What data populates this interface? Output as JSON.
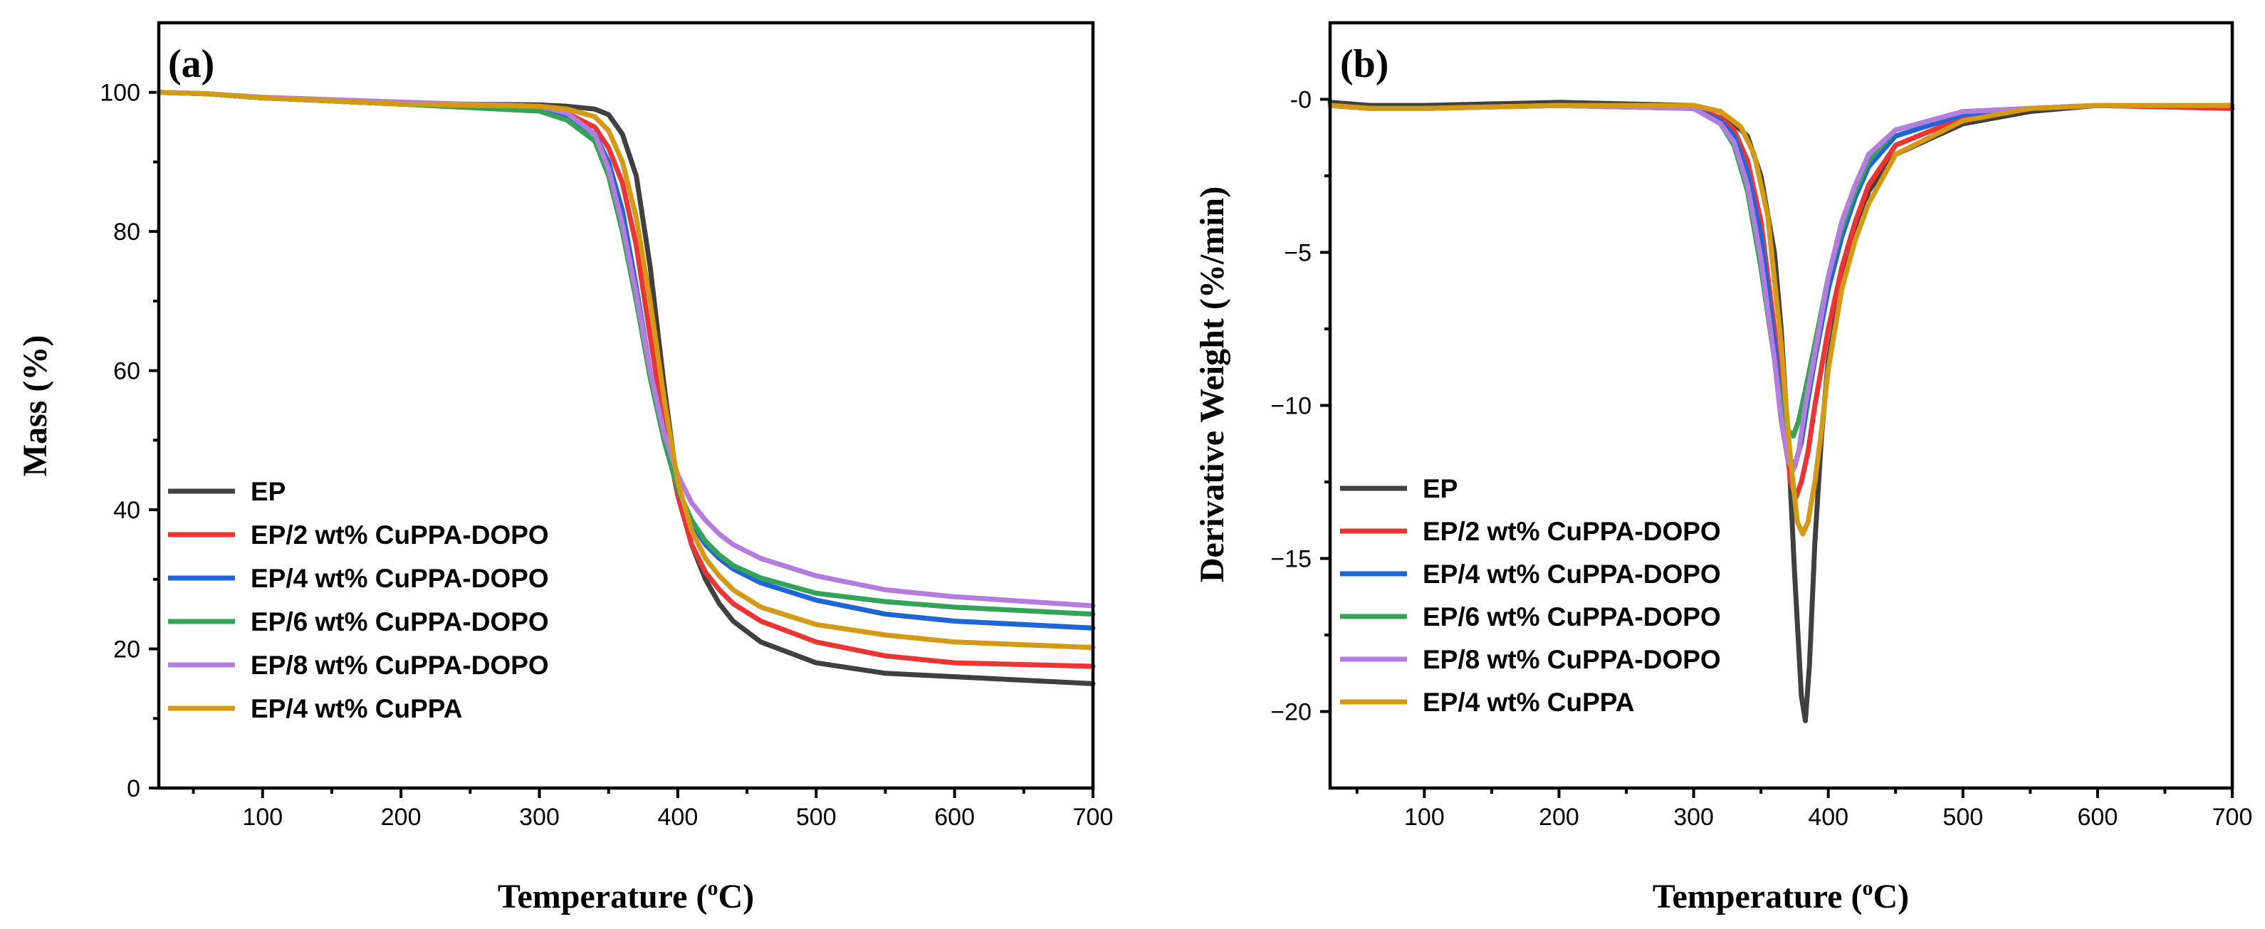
{
  "colors": {
    "EP": "#404040",
    "EP2": "#ee3333",
    "EP4": "#1e66d8",
    "EP6": "#33a35a",
    "EP8": "#b57ce0",
    "CuPPA": "#d49a14"
  },
  "chart_data": [
    {
      "panel": "(a)",
      "type": "line",
      "xlabel": "Temperature (oC)",
      "ylabel": "Mass (%)",
      "xlim": [
        25,
        700
      ],
      "ylim": [
        0,
        110
      ],
      "xticks": [
        100,
        200,
        300,
        400,
        500,
        600,
        700
      ],
      "yticks": [
        0,
        20,
        40,
        60,
        80,
        100
      ],
      "legend_position": "lower-left",
      "series": [
        {
          "name": "EP",
          "color_key": "EP",
          "x": [
            25,
            60,
            100,
            200,
            300,
            320,
            340,
            350,
            360,
            370,
            380,
            390,
            400,
            410,
            420,
            430,
            440,
            460,
            500,
            550,
            600,
            700
          ],
          "y": [
            100,
            99.8,
            99.2,
            98.4,
            98.2,
            98,
            97.6,
            96.8,
            94,
            88,
            75,
            58,
            43,
            35,
            30,
            26.5,
            24,
            21,
            18,
            16.5,
            16,
            15
          ]
        },
        {
          "name": "EP/2 wt% CuPPA-DOPO",
          "color_key": "EP2",
          "x": [
            25,
            60,
            100,
            200,
            300,
            320,
            340,
            350,
            360,
            370,
            380,
            390,
            400,
            410,
            420,
            430,
            440,
            460,
            500,
            550,
            600,
            700
          ],
          "y": [
            100,
            99.8,
            99.2,
            98.3,
            97.8,
            97,
            95,
            92,
            87,
            78,
            65,
            52,
            42,
            35,
            31,
            28.5,
            26.5,
            24,
            21,
            19,
            18,
            17.5
          ]
        },
        {
          "name": "EP/4 wt% CuPPA-DOPO",
          "color_key": "EP4",
          "x": [
            25,
            60,
            100,
            200,
            300,
            320,
            340,
            350,
            360,
            370,
            380,
            390,
            400,
            410,
            420,
            430,
            440,
            460,
            500,
            550,
            600,
            700
          ],
          "y": [
            100,
            99.8,
            99.2,
            98.3,
            97.5,
            96.5,
            94,
            90,
            83,
            72,
            60,
            50,
            43,
            38,
            35,
            33,
            31.5,
            29.5,
            27,
            25,
            24,
            23
          ]
        },
        {
          "name": "EP/6 wt% CuPPA-DOPO",
          "color_key": "EP6",
          "x": [
            25,
            60,
            100,
            200,
            300,
            320,
            340,
            350,
            360,
            370,
            380,
            390,
            400,
            410,
            420,
            430,
            440,
            460,
            500,
            550,
            600,
            700
          ],
          "y": [
            100,
            99.8,
            99.2,
            98.3,
            97.3,
            96,
            93,
            88,
            80,
            70,
            59,
            50,
            43,
            38.5,
            35.5,
            33.5,
            32,
            30.2,
            28,
            26.8,
            26,
            25
          ]
        },
        {
          "name": "EP/8 wt% CuPPA-DOPO",
          "color_key": "EP8",
          "x": [
            25,
            60,
            100,
            200,
            300,
            320,
            340,
            350,
            360,
            370,
            380,
            390,
            400,
            410,
            420,
            430,
            440,
            460,
            500,
            550,
            600,
            700
          ],
          "y": [
            100,
            99.8,
            99.3,
            98.6,
            98,
            97,
            94,
            89,
            81,
            71,
            60,
            51,
            45,
            41,
            38.5,
            36.5,
            35,
            33,
            30.5,
            28.5,
            27.5,
            26.2
          ]
        },
        {
          "name": "EP/4 wt% CuPPA",
          "color_key": "CuPPA",
          "x": [
            25,
            60,
            100,
            200,
            300,
            320,
            340,
            350,
            360,
            370,
            380,
            390,
            400,
            410,
            420,
            430,
            440,
            460,
            500,
            550,
            600,
            700
          ],
          "y": [
            100,
            99.8,
            99.2,
            98.3,
            98,
            97.6,
            96.5,
            94.5,
            90,
            82,
            70,
            56,
            44,
            37,
            33,
            30.5,
            28.5,
            26,
            23.5,
            22,
            21,
            20.2
          ]
        }
      ]
    },
    {
      "panel": "(b)",
      "type": "line",
      "xlabel": "Temperature (oC)",
      "ylabel": "Derivative Weight (%/min)",
      "xlim": [
        30,
        700
      ],
      "ylim": [
        -22.5,
        2.5
      ],
      "xticks": [
        100,
        200,
        300,
        400,
        500,
        600,
        700
      ],
      "yticks": [
        -20,
        -15,
        -10,
        -5,
        0
      ],
      "ytick_labels": [
        "−20",
        "−15",
        "−10",
        "−5",
        "-0"
      ],
      "legend_position": "lower-left",
      "series": [
        {
          "name": "EP",
          "color_key": "EP",
          "x": [
            30,
            60,
            100,
            200,
            300,
            320,
            340,
            350,
            360,
            365,
            370,
            375,
            380,
            383,
            386,
            390,
            395,
            400,
            410,
            420,
            430,
            450,
            500,
            550,
            600,
            700
          ],
          "y": [
            -0.1,
            -0.2,
            -0.2,
            -0.1,
            -0.2,
            -0.4,
            -1.2,
            -2.5,
            -5,
            -7.5,
            -11,
            -15.5,
            -19.5,
            -20.3,
            -18.5,
            -14.5,
            -11,
            -8.5,
            -6,
            -4.5,
            -3,
            -1.8,
            -0.8,
            -0.4,
            -0.2,
            -0.2
          ]
        },
        {
          "name": "EP/2 wt% CuPPA-DOPO",
          "color_key": "EP2",
          "x": [
            30,
            60,
            100,
            200,
            300,
            320,
            330,
            340,
            350,
            360,
            367,
            372,
            376,
            380,
            385,
            390,
            400,
            410,
            420,
            430,
            450,
            500,
            550,
            600,
            700
          ],
          "y": [
            -0.2,
            -0.3,
            -0.3,
            -0.2,
            -0.3,
            -0.6,
            -1,
            -2,
            -4,
            -7.5,
            -10.5,
            -12.5,
            -13,
            -12.5,
            -11.5,
            -10,
            -7.5,
            -5.5,
            -4,
            -2.8,
            -1.5,
            -0.6,
            -0.3,
            -0.2,
            -0.3
          ]
        },
        {
          "name": "EP/4 wt% CuPPA-DOPO",
          "color_key": "EP4",
          "x": [
            30,
            60,
            100,
            200,
            300,
            320,
            330,
            340,
            350,
            360,
            366,
            371,
            375,
            380,
            385,
            390,
            400,
            410,
            420,
            430,
            450,
            500,
            550,
            600,
            700
          ],
          "y": [
            -0.2,
            -0.3,
            -0.3,
            -0.2,
            -0.3,
            -0.7,
            -1.2,
            -2.4,
            -4.5,
            -8,
            -10.5,
            -11.7,
            -12,
            -11.2,
            -9.8,
            -8.5,
            -6.2,
            -4.5,
            -3.2,
            -2.2,
            -1.2,
            -0.5,
            -0.3,
            -0.2,
            -0.2
          ]
        },
        {
          "name": "EP/6 wt% CuPPA-DOPO",
          "color_key": "EP6",
          "x": [
            30,
            60,
            100,
            200,
            300,
            320,
            330,
            340,
            350,
            360,
            365,
            370,
            374,
            378,
            383,
            390,
            400,
            410,
            420,
            430,
            450,
            500,
            550,
            600,
            700
          ],
          "y": [
            -0.2,
            -0.3,
            -0.3,
            -0.2,
            -0.3,
            -0.8,
            -1.5,
            -3,
            -5.5,
            -8.5,
            -10,
            -10.8,
            -11,
            -10.5,
            -9.5,
            -8,
            -5.8,
            -4.2,
            -3,
            -2,
            -1,
            -0.4,
            -0.3,
            -0.2,
            -0.2
          ]
        },
        {
          "name": "EP/8 wt% CuPPA-DOPO",
          "color_key": "EP8",
          "x": [
            30,
            60,
            100,
            200,
            300,
            320,
            330,
            340,
            350,
            360,
            365,
            370,
            374,
            378,
            383,
            390,
            400,
            410,
            420,
            430,
            450,
            500,
            550,
            600,
            700
          ],
          "y": [
            -0.2,
            -0.3,
            -0.3,
            -0.2,
            -0.3,
            -0.8,
            -1.4,
            -2.8,
            -5.2,
            -8.5,
            -10.5,
            -11.8,
            -12.1,
            -11.5,
            -10,
            -8.3,
            -5.8,
            -4,
            -2.8,
            -1.8,
            -1,
            -0.4,
            -0.3,
            -0.2,
            -0.2
          ]
        },
        {
          "name": "EP/4 wt% CuPPA",
          "color_key": "CuPPA",
          "x": [
            30,
            60,
            100,
            200,
            300,
            320,
            335,
            345,
            355,
            365,
            372,
            377,
            381,
            385,
            390,
            395,
            400,
            410,
            420,
            430,
            450,
            500,
            550,
            600,
            700
          ],
          "y": [
            -0.2,
            -0.3,
            -0.3,
            -0.2,
            -0.2,
            -0.4,
            -0.9,
            -1.8,
            -3.8,
            -8,
            -11.8,
            -13.8,
            -14.2,
            -13.8,
            -12.5,
            -10.8,
            -8.8,
            -6.2,
            -4.6,
            -3.4,
            -1.8,
            -0.7,
            -0.3,
            -0.2,
            -0.2
          ]
        }
      ]
    }
  ]
}
